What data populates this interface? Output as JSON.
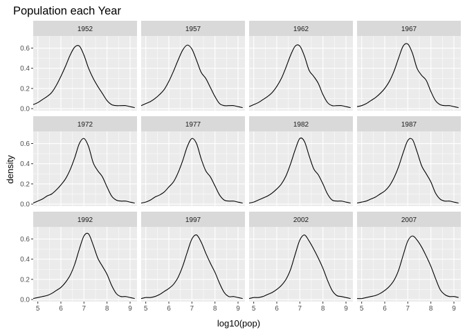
{
  "chart_data": {
    "type": "line",
    "title": "Population each Year",
    "xlabel": "log10(pop)",
    "ylabel": "density",
    "xlim": [
      4.8,
      9.3
    ],
    "ylim": [
      -0.02,
      0.72
    ],
    "x_ticks": [
      "5",
      "6",
      "7",
      "8",
      "9"
    ],
    "y_ticks": [
      "0.0",
      "0.2",
      "0.4",
      "0.6"
    ],
    "x": [
      4.8,
      5.0,
      5.2,
      5.4,
      5.6,
      5.8,
      6.0,
      6.2,
      6.4,
      6.6,
      6.8,
      7.0,
      7.2,
      7.4,
      7.6,
      7.8,
      8.0,
      8.2,
      8.4,
      8.6,
      8.8,
      9.0,
      9.2
    ],
    "grid": true,
    "layout": "facet 3x4",
    "panels": [
      {
        "name": "1952",
        "values": [
          0.04,
          0.06,
          0.09,
          0.12,
          0.16,
          0.23,
          0.32,
          0.42,
          0.53,
          0.61,
          0.62,
          0.53,
          0.4,
          0.3,
          0.22,
          0.15,
          0.08,
          0.04,
          0.03,
          0.03,
          0.03,
          0.02,
          0.01
        ]
      },
      {
        "name": "1957",
        "values": [
          0.03,
          0.05,
          0.07,
          0.1,
          0.14,
          0.19,
          0.27,
          0.37,
          0.48,
          0.58,
          0.63,
          0.59,
          0.48,
          0.36,
          0.3,
          0.21,
          0.12,
          0.05,
          0.03,
          0.03,
          0.03,
          0.02,
          0.01
        ]
      },
      {
        "name": "1962",
        "values": [
          0.02,
          0.04,
          0.06,
          0.09,
          0.12,
          0.16,
          0.22,
          0.3,
          0.41,
          0.53,
          0.62,
          0.62,
          0.52,
          0.38,
          0.32,
          0.25,
          0.14,
          0.06,
          0.03,
          0.03,
          0.03,
          0.02,
          0.01
        ]
      },
      {
        "name": "1967",
        "values": [
          0.02,
          0.03,
          0.05,
          0.08,
          0.11,
          0.15,
          0.2,
          0.27,
          0.37,
          0.5,
          0.62,
          0.64,
          0.55,
          0.4,
          0.33,
          0.28,
          0.17,
          0.08,
          0.04,
          0.03,
          0.03,
          0.02,
          0.01
        ]
      },
      {
        "name": "1972",
        "values": [
          0.01,
          0.03,
          0.05,
          0.08,
          0.1,
          0.14,
          0.19,
          0.25,
          0.34,
          0.46,
          0.6,
          0.65,
          0.57,
          0.41,
          0.33,
          0.27,
          0.17,
          0.08,
          0.04,
          0.03,
          0.03,
          0.02,
          0.01
        ]
      },
      {
        "name": "1977",
        "values": [
          0.01,
          0.02,
          0.04,
          0.07,
          0.09,
          0.12,
          0.17,
          0.22,
          0.31,
          0.43,
          0.57,
          0.65,
          0.6,
          0.45,
          0.33,
          0.27,
          0.18,
          0.09,
          0.04,
          0.03,
          0.03,
          0.02,
          0.01
        ]
      },
      {
        "name": "1982",
        "values": [
          0.01,
          0.02,
          0.04,
          0.06,
          0.08,
          0.11,
          0.15,
          0.2,
          0.28,
          0.4,
          0.54,
          0.65,
          0.62,
          0.48,
          0.35,
          0.29,
          0.2,
          0.1,
          0.04,
          0.03,
          0.03,
          0.02,
          0.01
        ]
      },
      {
        "name": "1987",
        "values": [
          0.01,
          0.02,
          0.03,
          0.05,
          0.07,
          0.1,
          0.13,
          0.18,
          0.26,
          0.37,
          0.51,
          0.63,
          0.64,
          0.52,
          0.38,
          0.3,
          0.22,
          0.11,
          0.05,
          0.03,
          0.03,
          0.02,
          0.01
        ]
      },
      {
        "name": "1992",
        "values": [
          0.01,
          0.02,
          0.03,
          0.04,
          0.06,
          0.09,
          0.12,
          0.17,
          0.24,
          0.35,
          0.5,
          0.63,
          0.65,
          0.54,
          0.41,
          0.33,
          0.25,
          0.14,
          0.06,
          0.03,
          0.03,
          0.02,
          0.01
        ]
      },
      {
        "name": "1997",
        "values": [
          0.01,
          0.02,
          0.02,
          0.03,
          0.05,
          0.08,
          0.11,
          0.15,
          0.22,
          0.33,
          0.47,
          0.6,
          0.64,
          0.57,
          0.46,
          0.36,
          0.27,
          0.16,
          0.07,
          0.03,
          0.03,
          0.02,
          0.01
        ]
      },
      {
        "name": "2002",
        "values": [
          0.01,
          0.02,
          0.02,
          0.03,
          0.05,
          0.07,
          0.1,
          0.14,
          0.2,
          0.3,
          0.45,
          0.59,
          0.64,
          0.58,
          0.5,
          0.41,
          0.31,
          0.19,
          0.09,
          0.04,
          0.03,
          0.02,
          0.01
        ]
      },
      {
        "name": "2007",
        "values": [
          0.01,
          0.01,
          0.02,
          0.03,
          0.04,
          0.06,
          0.09,
          0.13,
          0.19,
          0.29,
          0.44,
          0.58,
          0.63,
          0.59,
          0.52,
          0.43,
          0.33,
          0.21,
          0.1,
          0.05,
          0.03,
          0.03,
          0.02
        ]
      }
    ]
  },
  "colors": {
    "panel_background": "#ebebeb",
    "grid_major": "#ffffff",
    "strip_background": "#d9d9d9",
    "line": "#000000",
    "tick_text": "#4d4d4d"
  }
}
